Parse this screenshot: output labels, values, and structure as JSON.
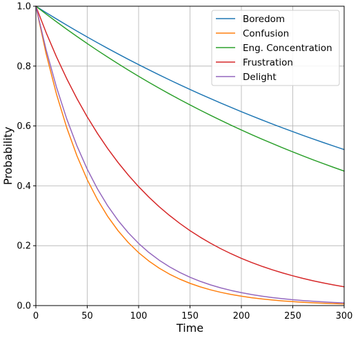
{
  "chart_data": {
    "type": "line",
    "title": "",
    "xlabel": "Time",
    "ylabel": "Probability",
    "xlim": [
      0,
      300
    ],
    "ylim": [
      0,
      1
    ],
    "xticks": [
      "0",
      "50",
      "100",
      "150",
      "200",
      "250",
      "300"
    ],
    "yticks": [
      "0.0",
      "0.2",
      "0.4",
      "0.6",
      "0.8",
      "1.0"
    ],
    "grid": true,
    "legend_position": "top-right",
    "x": [
      0,
      10,
      20,
      30,
      40,
      50,
      60,
      70,
      80,
      90,
      100,
      110,
      120,
      130,
      140,
      150,
      160,
      170,
      180,
      190,
      200,
      210,
      220,
      230,
      240,
      250,
      260,
      270,
      280,
      290,
      300
    ],
    "series": [
      {
        "name": "Boredom",
        "color": "#1f77b4",
        "values": [
          1.0,
          0.9785,
          0.9575,
          0.9369,
          0.9168,
          0.8971,
          0.8778,
          0.859,
          0.8405,
          0.8225,
          0.8048,
          0.7875,
          0.7706,
          0.754,
          0.7378,
          0.722,
          0.7064,
          0.6913,
          0.6764,
          0.6619,
          0.6476,
          0.6337,
          0.6201,
          0.6068,
          0.5937,
          0.581,
          0.5685,
          0.5563,
          0.5443,
          0.5326,
          0.5212
        ]
      },
      {
        "name": "Confusion",
        "color": "#ff7f0e",
        "values": [
          1.0,
          0.8409,
          0.7071,
          0.5946,
          0.5,
          0.4204,
          0.3536,
          0.2973,
          0.25,
          0.2102,
          0.1768,
          0.1487,
          0.125,
          0.1051,
          0.0884,
          0.0743,
          0.0625,
          0.0526,
          0.0442,
          0.0372,
          0.0313,
          0.0263,
          0.0221,
          0.0186,
          0.0156,
          0.0131,
          0.011,
          0.0093,
          0.0078,
          0.0066,
          0.0055
        ]
      },
      {
        "name": "Eng. Concentration",
        "color": "#2ca02c",
        "values": [
          1.0,
          0.9737,
          0.9481,
          0.9231,
          0.8988,
          0.8752,
          0.8521,
          0.8297,
          0.8079,
          0.7866,
          0.7659,
          0.7457,
          0.7261,
          0.707,
          0.6884,
          0.6703,
          0.6526,
          0.6355,
          0.6187,
          0.6024,
          0.5866,
          0.5711,
          0.5561,
          0.5415,
          0.5272,
          0.5134,
          0.4999,
          0.4867,
          0.4739,
          0.4614,
          0.4493
        ]
      },
      {
        "name": "Frustration",
        "color": "#d62728",
        "values": [
          1.0,
          0.9118,
          0.8314,
          0.7581,
          0.6912,
          0.6303,
          0.5747,
          0.524,
          0.4778,
          0.4357,
          0.3973,
          0.3622,
          0.3303,
          0.3012,
          0.2746,
          0.2504,
          0.2283,
          0.2082,
          0.1898,
          0.1731,
          0.1578,
          0.1439,
          0.1312,
          0.1196,
          0.1091,
          0.0995,
          0.0907,
          0.0827,
          0.0754,
          0.0688,
          0.0627
        ]
      },
      {
        "name": "Delight",
        "color": "#9467bd",
        "values": [
          1.0,
          0.8545,
          0.7302,
          0.624,
          0.5332,
          0.4556,
          0.3894,
          0.3327,
          0.2843,
          0.243,
          0.2076,
          0.1774,
          0.1516,
          0.1296,
          0.1107,
          0.0946,
          0.0809,
          0.0691,
          0.059,
          0.0505,
          0.0431,
          0.0368,
          0.0315,
          0.0269,
          0.023,
          0.0196,
          0.0168,
          0.0143,
          0.0123,
          0.0105,
          0.0089
        ]
      }
    ]
  }
}
